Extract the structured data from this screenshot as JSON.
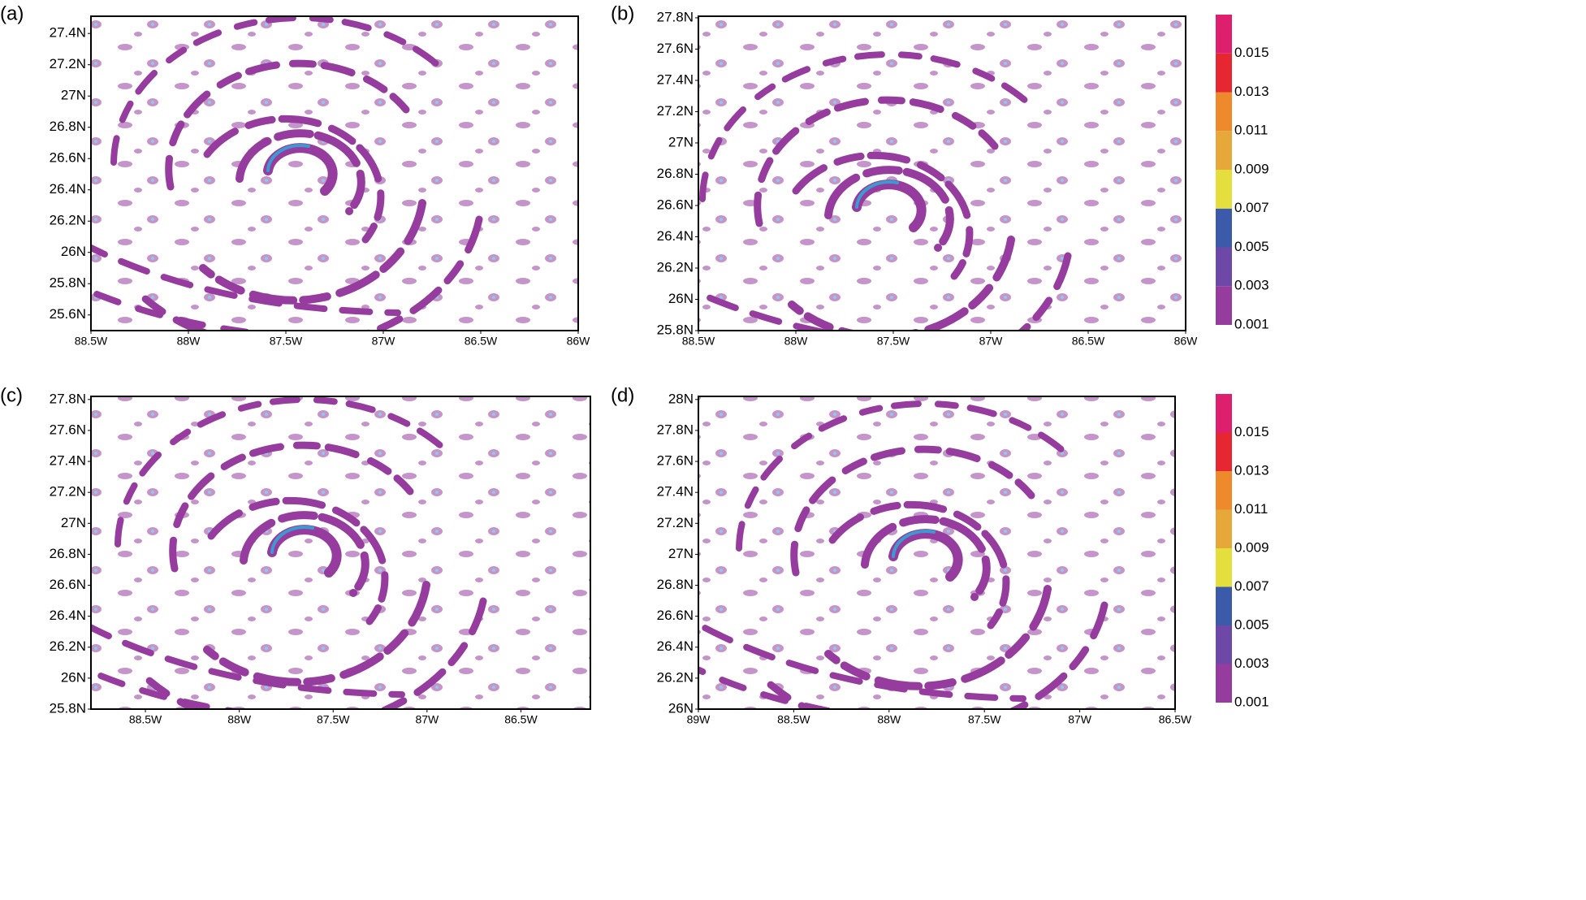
{
  "chart_data": [
    {
      "type": "contour",
      "panel_label": "(a)",
      "xlim": [
        -88.5,
        -86
      ],
      "ylim": [
        25.5,
        27.51
      ],
      "xticks": [
        {
          "value": -88.5,
          "label": "88.5W"
        },
        {
          "value": -88,
          "label": "88W"
        },
        {
          "value": -87.5,
          "label": "87.5W"
        },
        {
          "value": -87,
          "label": "87W"
        },
        {
          "value": -86.5,
          "label": "86.5W"
        },
        {
          "value": -86,
          "label": "86W"
        }
      ],
      "yticks": [
        {
          "value": 25.6,
          "label": "25.6N"
        },
        {
          "value": 25.8,
          "label": "25.8N"
        },
        {
          "value": 26,
          "label": "26N"
        },
        {
          "value": 26.2,
          "label": "26.2N"
        },
        {
          "value": 26.4,
          "label": "26.4N"
        },
        {
          "value": 26.6,
          "label": "26.6N"
        },
        {
          "value": 26.8,
          "label": "26.8N"
        },
        {
          "value": 27,
          "label": "27N"
        },
        {
          "value": 27.2,
          "label": "27.2N"
        },
        {
          "value": 27.4,
          "label": "27.4N"
        }
      ]
    },
    {
      "type": "contour",
      "panel_label": "(b)",
      "xlim": [
        -88.5,
        -86
      ],
      "ylim": [
        25.8,
        27.81
      ],
      "xticks": [
        {
          "value": -88.5,
          "label": "88.5W"
        },
        {
          "value": -88,
          "label": "88W"
        },
        {
          "value": -87.5,
          "label": "87.5W"
        },
        {
          "value": -87,
          "label": "87W"
        },
        {
          "value": -86.5,
          "label": "86.5W"
        },
        {
          "value": -86,
          "label": "86W"
        }
      ],
      "yticks": [
        {
          "value": 25.8,
          "label": "25.8N"
        },
        {
          "value": 26,
          "label": "26N"
        },
        {
          "value": 26.2,
          "label": "26.2N"
        },
        {
          "value": 26.4,
          "label": "26.4N"
        },
        {
          "value": 26.6,
          "label": "26.6N"
        },
        {
          "value": 26.8,
          "label": "26.8N"
        },
        {
          "value": 27,
          "label": "27N"
        },
        {
          "value": 27.2,
          "label": "27.2N"
        },
        {
          "value": 27.4,
          "label": "27.4N"
        },
        {
          "value": 27.6,
          "label": "27.6N"
        },
        {
          "value": 27.8,
          "label": "27.8N"
        }
      ],
      "colorbar": {
        "ticks": [
          0.001,
          0.003,
          0.005,
          0.007,
          0.009,
          0.011,
          0.013,
          0.015
        ],
        "colors": [
          "#963c9e",
          "#6e48a6",
          "#3b5aaa",
          "#e4df3c",
          "#e6a838",
          "#ee8a2c",
          "#e62630",
          "#de1f6e"
        ]
      }
    },
    {
      "type": "contour",
      "panel_label": "(c)",
      "xlim": [
        -88.79,
        -86.13
      ],
      "ylim": [
        25.8,
        27.82
      ],
      "xticks": [
        {
          "value": -88.5,
          "label": "88.5W"
        },
        {
          "value": -88,
          "label": "88W"
        },
        {
          "value": -87.5,
          "label": "87.5W"
        },
        {
          "value": -87,
          "label": "87W"
        },
        {
          "value": -86.5,
          "label": "86.5W"
        }
      ],
      "yticks": [
        {
          "value": 25.8,
          "label": "25.8N"
        },
        {
          "value": 26,
          "label": "26N"
        },
        {
          "value": 26.2,
          "label": "26.2N"
        },
        {
          "value": 26.4,
          "label": "26.4N"
        },
        {
          "value": 26.6,
          "label": "26.6N"
        },
        {
          "value": 26.8,
          "label": "26.8N"
        },
        {
          "value": 27,
          "label": "27N"
        },
        {
          "value": 27.2,
          "label": "27.2N"
        },
        {
          "value": 27.4,
          "label": "27.4N"
        },
        {
          "value": 27.6,
          "label": "27.6N"
        },
        {
          "value": 27.8,
          "label": "27.8N"
        }
      ]
    },
    {
      "type": "contour",
      "panel_label": "(d)",
      "xlim": [
        -89,
        -86.5
      ],
      "ylim": [
        26,
        28.02
      ],
      "xticks": [
        {
          "value": -89,
          "label": "89W"
        },
        {
          "value": -88.5,
          "label": "88.5W"
        },
        {
          "value": -88,
          "label": "88W"
        },
        {
          "value": -87.5,
          "label": "87.5W"
        },
        {
          "value": -87,
          "label": "87W"
        },
        {
          "value": -86.5,
          "label": "86.5W"
        }
      ],
      "yticks": [
        {
          "value": 26,
          "label": "26N"
        },
        {
          "value": 26.2,
          "label": "26.2N"
        },
        {
          "value": 26.4,
          "label": "26.4N"
        },
        {
          "value": 26.6,
          "label": "26.6N"
        },
        {
          "value": 26.8,
          "label": "26.8N"
        },
        {
          "value": 27,
          "label": "27N"
        },
        {
          "value": 27.2,
          "label": "27.2N"
        },
        {
          "value": 27.4,
          "label": "27.4N"
        },
        {
          "value": 27.6,
          "label": "27.6N"
        },
        {
          "value": 27.8,
          "label": "27.8N"
        },
        {
          "value": 28,
          "label": "28N"
        }
      ],
      "colorbar": {
        "ticks": [
          0.001,
          0.003,
          0.005,
          0.007,
          0.009,
          0.011,
          0.013,
          0.015
        ],
        "colors": [
          "#963c9e",
          "#6e48a6",
          "#3b5aaa",
          "#e4df3c",
          "#e6a838",
          "#ee8a2c",
          "#e62630",
          "#de1f6e"
        ]
      }
    }
  ]
}
